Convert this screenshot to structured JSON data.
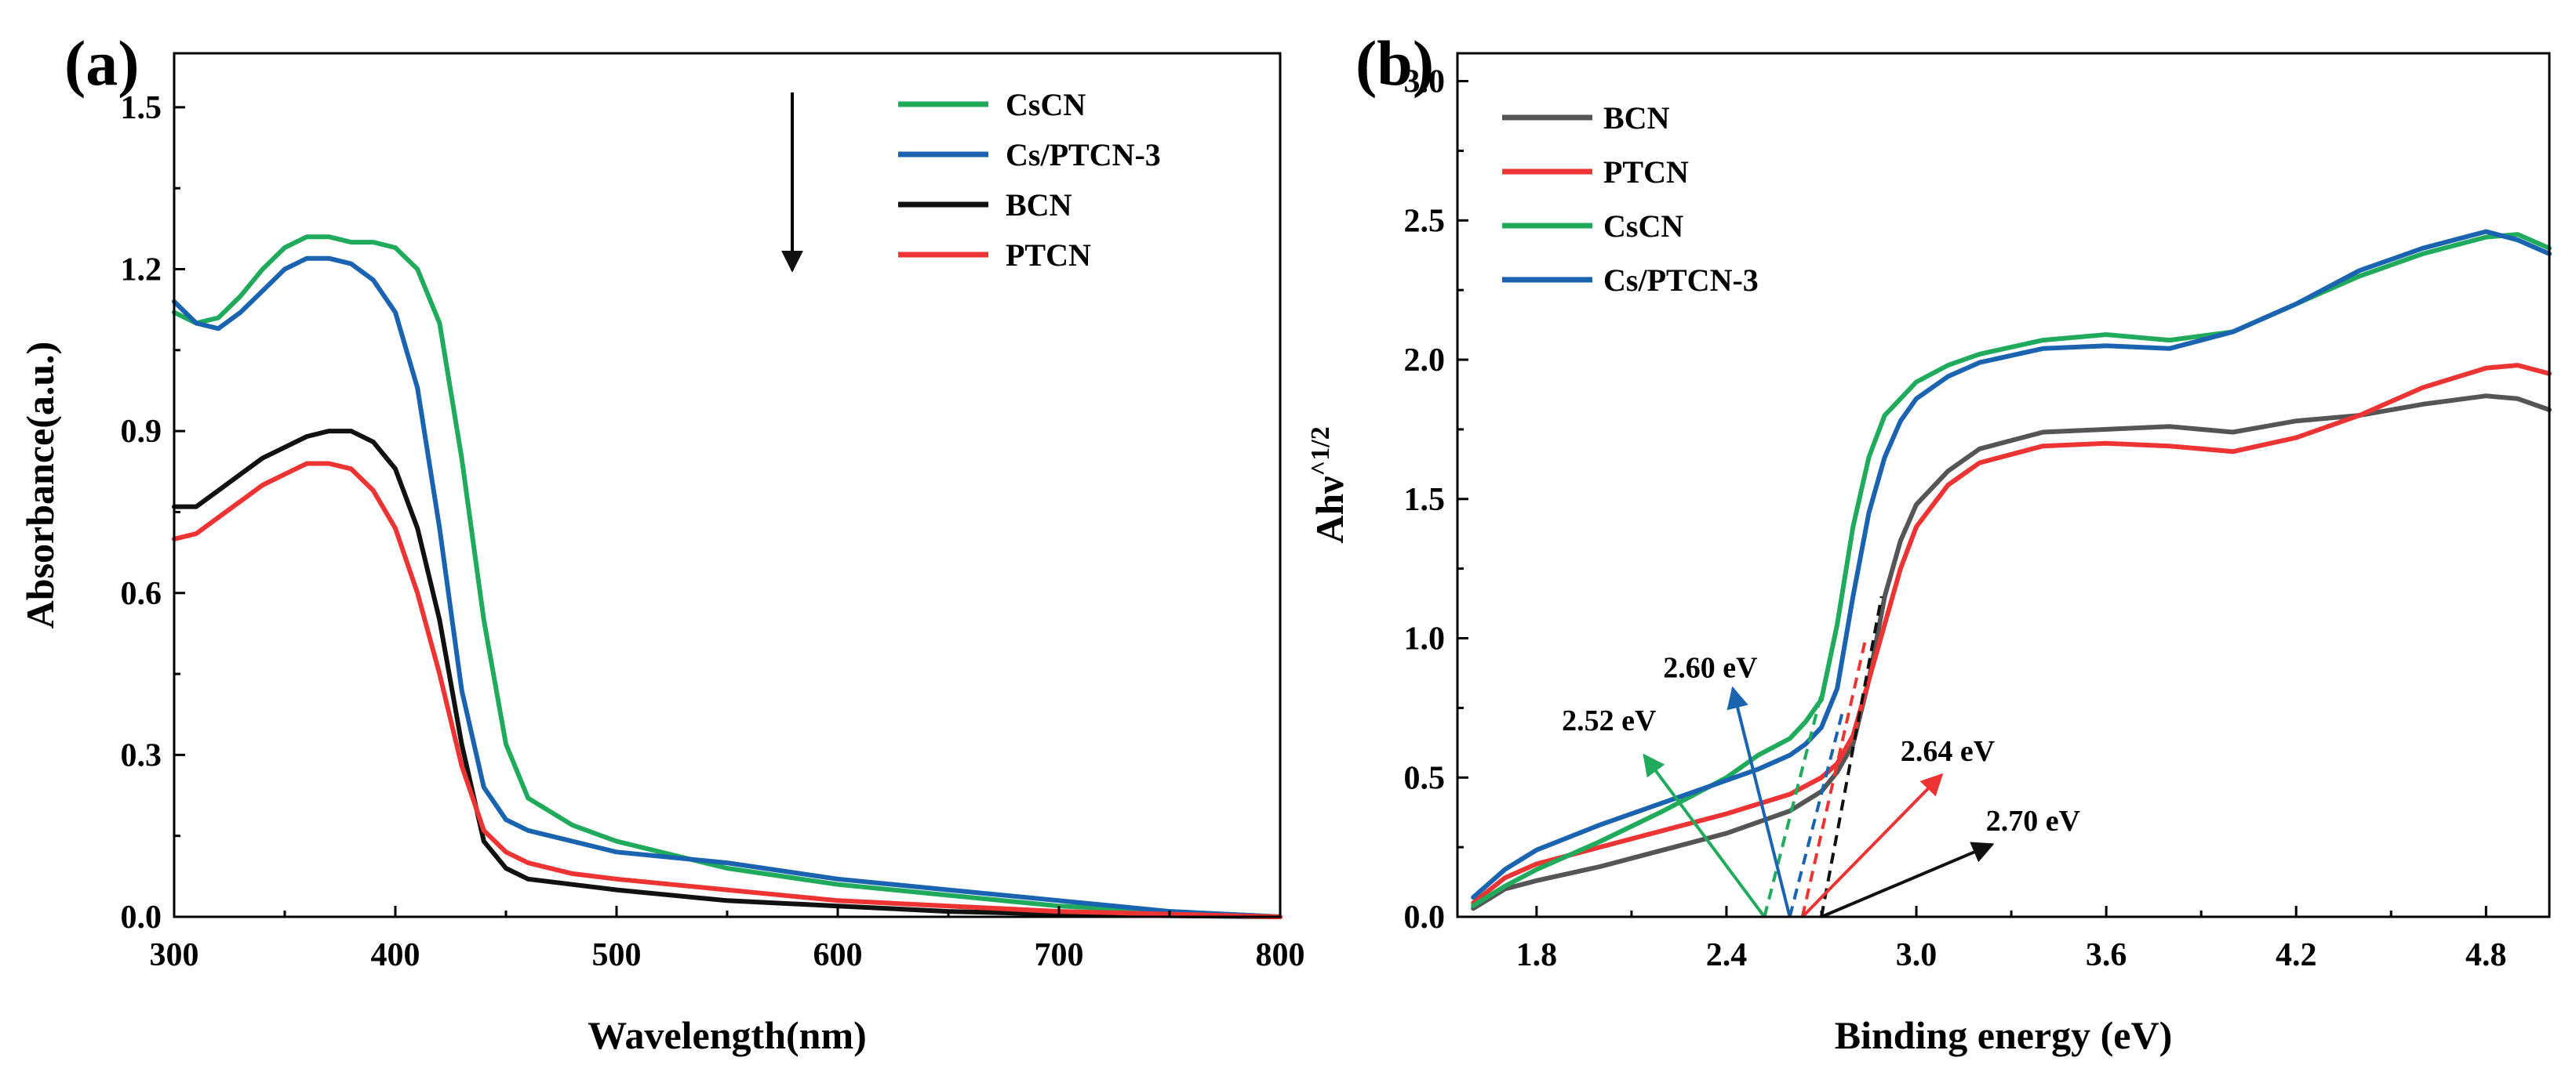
{
  "chart_data": [
    {
      "panel": "(a)",
      "type": "line",
      "xlabel": "Wavelength(nm)",
      "ylabel": "Absorbance(a.u.)",
      "xlim": [
        300,
        800
      ],
      "ylim": [
        0.0,
        1.6
      ],
      "xticks": [
        300,
        400,
        500,
        600,
        700,
        800
      ],
      "yticks": [
        0.0,
        0.3,
        0.6,
        0.9,
        1.2,
        1.5
      ],
      "ytick_labels": [
        "0.0",
        "0.3",
        "0.6",
        "0.9",
        "1.2",
        "1.5"
      ],
      "legend": [
        "CsCN",
        "Cs/PTCN-3",
        "BCN",
        "PTCN"
      ],
      "legend_position": "top-right",
      "arrow_annotation": "downward arrow next to legend",
      "series": [
        {
          "name": "CsCN",
          "color": "#1faa5c",
          "x": [
            300,
            310,
            320,
            330,
            340,
            350,
            360,
            370,
            380,
            390,
            400,
            410,
            420,
            430,
            440,
            450,
            460,
            480,
            500,
            550,
            600,
            650,
            700,
            750,
            800
          ],
          "y": [
            1.12,
            1.1,
            1.11,
            1.15,
            1.2,
            1.24,
            1.26,
            1.26,
            1.25,
            1.25,
            1.24,
            1.2,
            1.1,
            0.85,
            0.55,
            0.32,
            0.22,
            0.17,
            0.14,
            0.09,
            0.06,
            0.04,
            0.02,
            0.01,
            0.0
          ]
        },
        {
          "name": "Cs/PTCN-3",
          "color": "#1a63b0",
          "x": [
            300,
            310,
            320,
            330,
            340,
            350,
            360,
            370,
            380,
            390,
            400,
            410,
            420,
            430,
            440,
            450,
            460,
            480,
            500,
            550,
            600,
            650,
            700,
            750,
            800
          ],
          "y": [
            1.14,
            1.1,
            1.09,
            1.12,
            1.16,
            1.2,
            1.22,
            1.22,
            1.21,
            1.18,
            1.12,
            0.98,
            0.72,
            0.42,
            0.24,
            0.18,
            0.16,
            0.14,
            0.12,
            0.1,
            0.07,
            0.05,
            0.03,
            0.01,
            0.0
          ]
        },
        {
          "name": "BCN",
          "color": "#111111",
          "x": [
            300,
            310,
            320,
            330,
            340,
            350,
            360,
            370,
            380,
            390,
            400,
            410,
            420,
            430,
            440,
            450,
            460,
            480,
            500,
            550,
            600,
            650,
            700,
            750,
            800
          ],
          "y": [
            0.76,
            0.76,
            0.79,
            0.82,
            0.85,
            0.87,
            0.89,
            0.9,
            0.9,
            0.88,
            0.83,
            0.72,
            0.55,
            0.32,
            0.14,
            0.09,
            0.07,
            0.06,
            0.05,
            0.03,
            0.02,
            0.01,
            0.005,
            0.002,
            0.0
          ]
        },
        {
          "name": "PTCN",
          "color": "#ee3333",
          "x": [
            300,
            310,
            320,
            330,
            340,
            350,
            360,
            370,
            380,
            390,
            400,
            410,
            420,
            430,
            440,
            450,
            460,
            480,
            500,
            550,
            600,
            650,
            700,
            750,
            800
          ],
          "y": [
            0.7,
            0.71,
            0.74,
            0.77,
            0.8,
            0.82,
            0.84,
            0.84,
            0.83,
            0.79,
            0.72,
            0.6,
            0.45,
            0.28,
            0.16,
            0.12,
            0.1,
            0.08,
            0.07,
            0.05,
            0.03,
            0.02,
            0.01,
            0.005,
            0.0
          ]
        }
      ]
    },
    {
      "panel": "(b)",
      "type": "line",
      "xlabel": "Binding energy (eV)",
      "ylabel": "Ahν^1/2",
      "ylabel_main": "Ahν",
      "ylabel_sup": "^1/2",
      "xlim": [
        1.55,
        5.0
      ],
      "ylim": [
        0.0,
        3.1
      ],
      "xticks": [
        1.8,
        2.4,
        3.0,
        3.6,
        4.2,
        4.8
      ],
      "xtick_labels": [
        "1.8",
        "2.4",
        "3.0",
        "3.6",
        "4.2",
        "4.8"
      ],
      "yticks": [
        0.0,
        0.5,
        1.0,
        1.5,
        2.0,
        2.5,
        3.0
      ],
      "ytick_labels": [
        "0.0",
        "0.5",
        "1.0",
        "1.5",
        "2.0",
        "2.5",
        "3.0"
      ],
      "legend": [
        "BCN",
        "PTCN",
        "CsCN",
        "Cs/PTCN-3"
      ],
      "legend_position": "top-left",
      "series": [
        {
          "name": "BCN",
          "color": "#555555",
          "x": [
            1.6,
            1.7,
            1.8,
            2.0,
            2.2,
            2.4,
            2.6,
            2.7,
            2.75,
            2.8,
            2.85,
            2.9,
            2.95,
            3.0,
            3.1,
            3.2,
            3.4,
            3.6,
            3.8,
            4.0,
            4.2,
            4.4,
            4.6,
            4.8,
            4.9,
            5.0
          ],
          "y": [
            0.03,
            0.1,
            0.13,
            0.18,
            0.24,
            0.3,
            0.38,
            0.45,
            0.52,
            0.62,
            0.85,
            1.15,
            1.35,
            1.48,
            1.6,
            1.68,
            1.74,
            1.75,
            1.76,
            1.74,
            1.78,
            1.8,
            1.84,
            1.87,
            1.86,
            1.82
          ]
        },
        {
          "name": "PTCN",
          "color": "#ee3333",
          "x": [
            1.6,
            1.7,
            1.8,
            2.0,
            2.2,
            2.4,
            2.6,
            2.7,
            2.75,
            2.8,
            2.85,
            2.9,
            2.95,
            3.0,
            3.1,
            3.2,
            3.4,
            3.6,
            3.8,
            4.0,
            4.2,
            4.4,
            4.6,
            4.8,
            4.9,
            5.0
          ],
          "y": [
            0.05,
            0.14,
            0.19,
            0.25,
            0.31,
            0.37,
            0.44,
            0.5,
            0.55,
            0.65,
            0.85,
            1.05,
            1.25,
            1.4,
            1.55,
            1.63,
            1.69,
            1.7,
            1.69,
            1.67,
            1.72,
            1.8,
            1.9,
            1.97,
            1.98,
            1.95
          ]
        },
        {
          "name": "CsCN",
          "color": "#1faa5c",
          "x": [
            1.6,
            1.7,
            1.8,
            2.0,
            2.2,
            2.4,
            2.5,
            2.6,
            2.65,
            2.7,
            2.75,
            2.8,
            2.85,
            2.9,
            2.95,
            3.0,
            3.1,
            3.2,
            3.4,
            3.6,
            3.8,
            4.0,
            4.2,
            4.4,
            4.6,
            4.8,
            4.9,
            5.0
          ],
          "y": [
            0.04,
            0.11,
            0.17,
            0.27,
            0.38,
            0.5,
            0.58,
            0.64,
            0.7,
            0.78,
            1.05,
            1.4,
            1.65,
            1.8,
            1.86,
            1.92,
            1.98,
            2.02,
            2.07,
            2.09,
            2.07,
            2.1,
            2.2,
            2.3,
            2.38,
            2.44,
            2.45,
            2.4
          ]
        },
        {
          "name": "Cs/PTCN-3",
          "color": "#1a63b0",
          "x": [
            1.6,
            1.7,
            1.8,
            2.0,
            2.2,
            2.4,
            2.5,
            2.6,
            2.65,
            2.7,
            2.75,
            2.8,
            2.85,
            2.9,
            2.95,
            3.0,
            3.1,
            3.2,
            3.4,
            3.6,
            3.8,
            4.0,
            4.2,
            4.4,
            4.6,
            4.8,
            4.9,
            5.0
          ],
          "y": [
            0.07,
            0.17,
            0.24,
            0.33,
            0.41,
            0.49,
            0.53,
            0.58,
            0.62,
            0.68,
            0.82,
            1.15,
            1.45,
            1.65,
            1.78,
            1.86,
            1.94,
            1.99,
            2.04,
            2.05,
            2.04,
            2.1,
            2.2,
            2.32,
            2.4,
            2.46,
            2.43,
            2.38
          ]
        }
      ],
      "tangent_lines": [
        {
          "name": "CsCN",
          "color": "#1faa5c",
          "x": [
            2.52,
            2.7
          ],
          "y": [
            0.0,
            0.8
          ]
        },
        {
          "name": "Cs/PTCN-3",
          "color": "#1a63b0",
          "x": [
            2.6,
            2.77
          ],
          "y": [
            0.0,
            0.75
          ]
        },
        {
          "name": "PTCN",
          "color": "#ee3333",
          "x": [
            2.64,
            2.84
          ],
          "y": [
            0.0,
            1.0
          ]
        },
        {
          "name": "BCN",
          "color": "#111111",
          "x": [
            2.7,
            2.89
          ],
          "y": [
            0.0,
            1.15
          ]
        }
      ],
      "annotations": [
        {
          "text": "2.52 eV",
          "color": "#1faa5c",
          "arrow_from": [
            2.52,
            0.0
          ],
          "arrow_to": [
            2.14,
            0.58
          ],
          "label_at": [
            1.88,
            0.67
          ]
        },
        {
          "text": "2.60 eV",
          "color": "#1a63b0",
          "arrow_from": [
            2.6,
            0.0
          ],
          "arrow_to": [
            2.42,
            0.82
          ],
          "label_at": [
            2.2,
            0.86
          ]
        },
        {
          "text": "2.64 eV",
          "color": "#ee3333",
          "arrow_from": [
            2.64,
            0.0
          ],
          "arrow_to": [
            3.08,
            0.51
          ],
          "label_at": [
            2.95,
            0.56
          ]
        },
        {
          "text": "2.70 eV",
          "color": "#111111",
          "arrow_from": [
            2.7,
            0.0
          ],
          "arrow_to": [
            3.24,
            0.26
          ],
          "label_at": [
            3.22,
            0.31
          ]
        }
      ]
    }
  ]
}
